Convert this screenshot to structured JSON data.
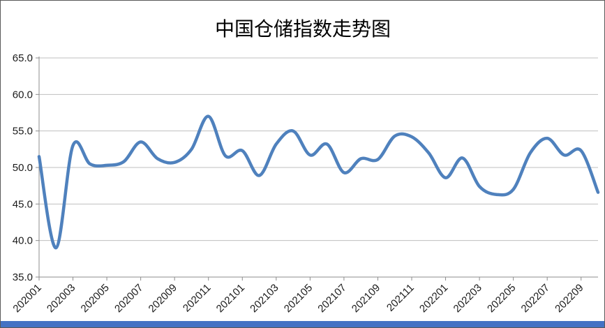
{
  "chart_data": {
    "type": "line",
    "title": "中国仓储指数走势图",
    "xlabel": "",
    "ylabel": "",
    "x": [
      "202001",
      "202002",
      "202003",
      "202004",
      "202005",
      "202006",
      "202007",
      "202008",
      "202009",
      "202010",
      "202011",
      "202012",
      "202101",
      "202102",
      "202103",
      "202104",
      "202105",
      "202106",
      "202107",
      "202108",
      "202109",
      "202110",
      "202111",
      "202112",
      "202201",
      "202202",
      "202203",
      "202204",
      "202205",
      "202206",
      "202207",
      "202208",
      "202209",
      "202210"
    ],
    "values": [
      51.5,
      39.0,
      53.0,
      50.5,
      50.3,
      50.8,
      53.5,
      51.2,
      50.7,
      52.5,
      57.0,
      51.6,
      52.3,
      48.9,
      53.2,
      55.0,
      51.7,
      53.2,
      49.3,
      51.2,
      51.1,
      54.3,
      54.2,
      52.0,
      48.6,
      51.3,
      47.4,
      46.3,
      47.0,
      52.0,
      54.0,
      51.7,
      52.3,
      46.6
    ],
    "ylim": [
      35.0,
      65.0
    ],
    "yticks": [
      35.0,
      40.0,
      45.0,
      50.0,
      55.0,
      60.0,
      65.0
    ],
    "xtick_labels": [
      "202001",
      "202003",
      "202005",
      "202007",
      "202009",
      "202011",
      "202101",
      "202103",
      "202105",
      "202107",
      "202109",
      "202111",
      "202201",
      "202203",
      "202205",
      "202207",
      "202209"
    ],
    "grid": "horizontal",
    "legend": "none",
    "smooth": true,
    "line_color": "#4F81BD",
    "grid_color": "#BFBFBF",
    "axis_color": "#8C8C8C",
    "bottom_bar_color": "#4472C4"
  }
}
